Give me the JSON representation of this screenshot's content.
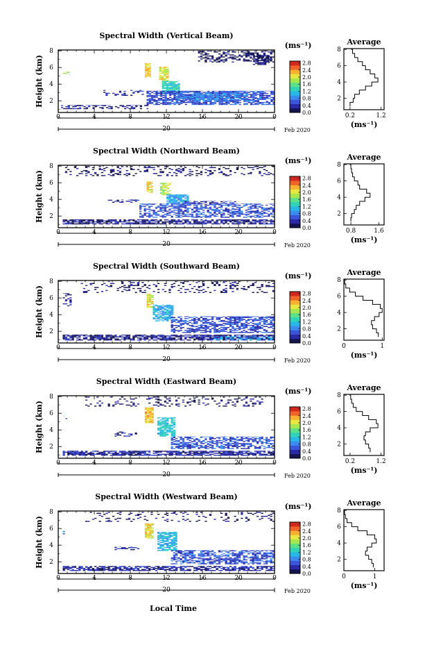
{
  "figure": {
    "xlabel": "Local Time",
    "ylabel": "Height (km)",
    "date_label": "Feb 2020",
    "day_label": "20",
    "unit_label": "(ms⁻¹)",
    "avg_title": "Average",
    "colormap": [
      "#141450",
      "#2a2aa8",
      "#3a55d8",
      "#3c8cf0",
      "#28b8e6",
      "#30d2b8",
      "#5ce08a",
      "#a8e650",
      "#e8e640",
      "#f8b030",
      "#f06428",
      "#d22820"
    ]
  },
  "chart_data": [
    {
      "type": "heatmap",
      "title": "Spectral Width (Vertical Beam)",
      "x_ticks": [
        "0",
        "4",
        "8",
        "12",
        "16",
        "20",
        "0"
      ],
      "y_ticks": [
        "2",
        "4",
        "6",
        "8"
      ],
      "xlim": [
        0,
        24
      ],
      "ylim": [
        0.6,
        8.1
      ],
      "cb_ticks": [
        "0.0",
        "0.4",
        "0.8",
        "1.2",
        "1.6",
        "2.0",
        "2.4",
        "2.8"
      ],
      "cb_range": [
        0,
        2.9
      ],
      "blobs": [
        {
          "t0": 15.5,
          "t1": 24,
          "h0": 6.6,
          "h1": 8.0,
          "v": 0.12,
          "d": 0.45
        },
        {
          "t0": 21.6,
          "t1": 23.4,
          "h0": 6.3,
          "h1": 7.5,
          "v": 0.1,
          "d": 0.7
        },
        {
          "t0": 9.6,
          "t1": 10.3,
          "h0": 4.8,
          "h1": 6.5,
          "v": 2.2,
          "d": 0.85
        },
        {
          "t0": 11.2,
          "t1": 12.3,
          "h0": 4.4,
          "h1": 6.1,
          "v": 2.0,
          "d": 0.8
        },
        {
          "t0": 11.5,
          "t1": 13.5,
          "h0": 2.8,
          "h1": 4.4,
          "v": 1.3,
          "d": 0.85
        },
        {
          "t0": 9.8,
          "t1": 24,
          "h0": 1.5,
          "h1": 3.2,
          "v": 0.55,
          "d": 0.75
        },
        {
          "t0": 13.0,
          "t1": 21.0,
          "h0": 2.0,
          "h1": 3.0,
          "v": 0.8,
          "d": 0.7
        },
        {
          "t0": 0.3,
          "t1": 10.0,
          "h0": 1.0,
          "h1": 1.5,
          "v": 0.3,
          "d": 0.45
        },
        {
          "t0": 0.5,
          "t1": 1.3,
          "h0": 5.0,
          "h1": 5.5,
          "v": 1.7,
          "d": 0.5
        },
        {
          "t0": 5.0,
          "t1": 9.5,
          "h0": 2.6,
          "h1": 3.3,
          "v": 0.4,
          "d": 0.25
        }
      ],
      "avg_x": [
        0.2,
        0.3,
        0.35,
        0.5,
        0.7,
        0.9,
        1.1,
        1.0,
        0.85,
        0.7,
        0.6,
        0.45,
        0.35,
        0.28,
        0.25,
        0.25
      ],
      "avg_y": [
        1.0,
        1.5,
        2.0,
        2.5,
        3.0,
        3.5,
        4.0,
        4.5,
        5.0,
        5.5,
        6.0,
        6.5,
        7.0,
        7.5,
        8.0,
        8.1
      ],
      "avg_xticks": [
        "0.2",
        "1.2"
      ],
      "avg_xlim": [
        0.0,
        1.3
      ],
      "avg_yticks": [
        "2",
        "4",
        "6",
        "8"
      ]
    },
    {
      "type": "heatmap",
      "title": "Spectral Width (Northward Beam)",
      "x_ticks": [
        "0",
        "4",
        "8",
        "12",
        "16",
        "20",
        "0"
      ],
      "y_ticks": [
        "2",
        "4",
        "6",
        "8"
      ],
      "xlim": [
        0,
        24
      ],
      "ylim": [
        0.6,
        8.1
      ],
      "cb_ticks": [
        "0.0",
        "0.4",
        "0.8",
        "1.2",
        "1.6",
        "2.0",
        "2.4",
        "2.8"
      ],
      "cb_range": [
        0,
        2.9
      ],
      "blobs": [
        {
          "t0": 0.5,
          "t1": 24,
          "h0": 6.8,
          "h1": 8.0,
          "v": 0.15,
          "d": 0.2
        },
        {
          "t0": 9.8,
          "t1": 10.5,
          "h0": 4.8,
          "h1": 6.2,
          "v": 2.1,
          "d": 0.8
        },
        {
          "t0": 11.3,
          "t1": 12.5,
          "h0": 4.5,
          "h1": 6.0,
          "v": 1.9,
          "d": 0.75
        },
        {
          "t0": 12.0,
          "t1": 14.5,
          "h0": 3.5,
          "h1": 4.6,
          "v": 1.0,
          "d": 0.85
        },
        {
          "t0": 9.0,
          "t1": 24,
          "h0": 1.8,
          "h1": 3.5,
          "v": 0.6,
          "d": 0.55
        },
        {
          "t0": 0.5,
          "t1": 24,
          "h0": 1.0,
          "h1": 1.6,
          "v": 0.3,
          "d": 0.7
        },
        {
          "t0": 14.0,
          "t1": 20.0,
          "h0": 3.3,
          "h1": 3.8,
          "v": 0.4,
          "d": 0.5
        },
        {
          "t0": 5.5,
          "t1": 9.0,
          "h0": 3.6,
          "h1": 4.0,
          "v": 0.4,
          "d": 0.4
        }
      ],
      "avg_x": [
        0.8,
        0.82,
        0.9,
        0.95,
        1.05,
        1.2,
        1.35,
        1.25,
        1.05,
        1.0,
        0.9,
        0.85,
        0.82,
        0.8,
        0.78,
        0.78
      ],
      "avg_y": [
        1.0,
        1.5,
        2.0,
        2.5,
        3.0,
        3.5,
        4.0,
        4.5,
        5.0,
        5.5,
        6.0,
        6.5,
        7.0,
        7.5,
        8.0,
        8.1
      ],
      "avg_xticks": [
        "0.8",
        "1.6"
      ],
      "avg_xlim": [
        0.6,
        1.75
      ],
      "avg_yticks": [
        "2",
        "4",
        "6",
        "8"
      ]
    },
    {
      "type": "heatmap",
      "title": "Spectral Width (Southward Beam)",
      "x_ticks": [
        "0",
        "4",
        "8",
        "12",
        "16",
        "20",
        "0"
      ],
      "y_ticks": [
        "2",
        "4",
        "6",
        "8"
      ],
      "xlim": [
        0,
        24
      ],
      "ylim": [
        0.6,
        8.1
      ],
      "cb_ticks": [
        "0.0",
        "0.4",
        "0.8",
        "1.2",
        "1.6",
        "2.0",
        "2.4",
        "2.8"
      ],
      "cb_range": [
        0,
        2.9
      ],
      "blobs": [
        {
          "t0": 2.5,
          "t1": 24,
          "h0": 6.6,
          "h1": 8.0,
          "v": 0.2,
          "d": 0.2
        },
        {
          "t0": 9.8,
          "t1": 10.6,
          "h0": 4.8,
          "h1": 6.5,
          "v": 2.0,
          "d": 0.8
        },
        {
          "t0": 10.5,
          "t1": 12.8,
          "h0": 3.2,
          "h1": 5.2,
          "v": 1.0,
          "d": 0.7
        },
        {
          "t0": 12.5,
          "t1": 24,
          "h0": 1.8,
          "h1": 3.8,
          "v": 0.55,
          "d": 0.6
        },
        {
          "t0": 0.5,
          "t1": 24,
          "h0": 0.9,
          "h1": 1.6,
          "v": 0.3,
          "d": 0.75
        },
        {
          "t0": 0.5,
          "t1": 1.5,
          "h0": 5.0,
          "h1": 6.6,
          "v": 0.3,
          "d": 0.3
        },
        {
          "t0": 17.0,
          "t1": 24,
          "h0": 0.9,
          "h1": 1.4,
          "v": 0.9,
          "d": 0.55
        }
      ],
      "avg_x": [
        0.9,
        0.85,
        0.75,
        0.72,
        0.8,
        0.92,
        1.0,
        0.95,
        0.75,
        0.5,
        0.3,
        0.15,
        0.05,
        0.02,
        0.01,
        0.01
      ],
      "avg_y": [
        1.0,
        1.5,
        2.0,
        2.5,
        3.0,
        3.5,
        4.0,
        4.5,
        5.0,
        5.5,
        6.0,
        6.5,
        7.0,
        7.5,
        8.0,
        8.1
      ],
      "avg_xticks": [
        "0",
        "1"
      ],
      "avg_xlim": [
        0.0,
        1.05
      ],
      "avg_yticks": [
        "2",
        "4",
        "6",
        "8"
      ]
    },
    {
      "type": "heatmap",
      "title": "Spectral Width (Eastward Beam)",
      "x_ticks": [
        "0",
        "4",
        "8",
        "12",
        "16",
        "20",
        "0"
      ],
      "y_ticks": [
        "2",
        "4",
        "6",
        "8"
      ],
      "xlim": [
        0,
        24
      ],
      "ylim": [
        0.6,
        8.1
      ],
      "cb_ticks": [
        "0.0",
        "0.4",
        "0.8",
        "1.2",
        "1.6",
        "2.0",
        "2.4",
        "2.8"
      ],
      "cb_range": [
        0,
        2.9
      ],
      "blobs": [
        {
          "t0": 3.0,
          "t1": 23.0,
          "h0": 6.8,
          "h1": 8.0,
          "v": 0.2,
          "d": 0.2
        },
        {
          "t0": 9.6,
          "t1": 10.6,
          "h0": 4.8,
          "h1": 6.7,
          "v": 2.2,
          "d": 0.85
        },
        {
          "t0": 11.0,
          "t1": 13.0,
          "h0": 3.2,
          "h1": 5.5,
          "v": 1.2,
          "d": 0.75
        },
        {
          "t0": 12.5,
          "t1": 24,
          "h0": 1.7,
          "h1": 3.2,
          "v": 0.6,
          "d": 0.6
        },
        {
          "t0": 0.5,
          "t1": 24,
          "h0": 0.9,
          "h1": 1.5,
          "v": 0.35,
          "d": 0.75
        },
        {
          "t0": 6.0,
          "t1": 9.0,
          "h0": 3.2,
          "h1": 3.8,
          "v": 0.4,
          "d": 0.35
        },
        {
          "t0": 0.3,
          "t1": 1.0,
          "h0": 5.3,
          "h1": 5.7,
          "v": 0.9,
          "d": 0.4
        }
      ],
      "avg_x": [
        0.85,
        0.8,
        0.7,
        0.65,
        0.7,
        0.85,
        1.1,
        1.05,
        0.8,
        0.6,
        0.4,
        0.3,
        0.25,
        0.22,
        0.2,
        0.2
      ],
      "avg_y": [
        1.0,
        1.5,
        2.0,
        2.5,
        3.0,
        3.5,
        4.0,
        4.5,
        5.0,
        5.5,
        6.0,
        6.5,
        7.0,
        7.5,
        8.0,
        8.1
      ],
      "avg_xticks": [
        "0.2",
        "1.2"
      ],
      "avg_xlim": [
        0.0,
        1.3
      ],
      "avg_yticks": [
        "2",
        "4",
        "6",
        "8"
      ]
    },
    {
      "type": "heatmap",
      "title": "Spectral Width (Westward Beam)",
      "x_ticks": [
        "0",
        "4",
        "8",
        "12",
        "16",
        "20",
        "0"
      ],
      "y_ticks": [
        "2",
        "4",
        "6",
        "8"
      ],
      "xlim": [
        0,
        24
      ],
      "ylim": [
        0.6,
        8.1
      ],
      "cb_ticks": [
        "0.0",
        "0.4",
        "0.8",
        "1.2",
        "1.6",
        "2.0",
        "2.4",
        "2.8"
      ],
      "cb_range": [
        0,
        2.9
      ],
      "blobs": [
        {
          "t0": 3.0,
          "t1": 24,
          "h0": 6.8,
          "h1": 8.0,
          "v": 0.2,
          "d": 0.15
        },
        {
          "t0": 9.6,
          "t1": 10.6,
          "h0": 4.8,
          "h1": 6.6,
          "v": 2.1,
          "d": 0.85
        },
        {
          "t0": 11.0,
          "t1": 13.2,
          "h0": 3.3,
          "h1": 5.6,
          "v": 1.1,
          "d": 0.75
        },
        {
          "t0": 12.5,
          "t1": 24,
          "h0": 1.7,
          "h1": 3.4,
          "v": 0.6,
          "d": 0.6
        },
        {
          "t0": 0.5,
          "t1": 24,
          "h0": 0.9,
          "h1": 1.5,
          "v": 0.35,
          "d": 0.7
        },
        {
          "t0": 6.0,
          "t1": 9.0,
          "h0": 3.4,
          "h1": 3.8,
          "v": 0.45,
          "d": 0.4
        },
        {
          "t0": 0.5,
          "t1": 1.0,
          "h0": 5.3,
          "h1": 5.7,
          "v": 0.9,
          "d": 0.4
        }
      ],
      "avg_x": [
        0.95,
        0.9,
        0.8,
        0.7,
        0.75,
        0.9,
        1.05,
        1.0,
        0.75,
        0.45,
        0.25,
        0.1,
        0.05,
        0.02,
        0.01,
        0.01
      ],
      "avg_y": [
        1.0,
        1.5,
        2.0,
        2.5,
        3.0,
        3.5,
        4.0,
        4.5,
        5.0,
        5.5,
        6.0,
        6.5,
        7.0,
        7.5,
        8.0,
        8.1
      ],
      "avg_xticks": [
        "0",
        "1"
      ],
      "avg_xlim": [
        0.0,
        1.3
      ],
      "avg_yticks": [
        "2",
        "4",
        "6",
        "8"
      ]
    }
  ]
}
